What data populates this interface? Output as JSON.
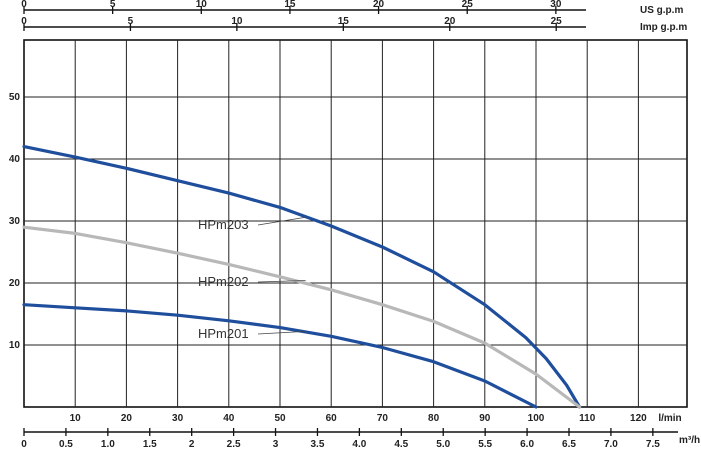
{
  "chart_data": {
    "type": "line",
    "title": "",
    "xlabel": "l/min",
    "ylabel": "",
    "xlim": [
      0,
      132
    ],
    "ylim": [
      0,
      60
    ],
    "grid": true,
    "x_ticks": [
      10,
      20,
      30,
      40,
      50,
      60,
      70,
      80,
      90,
      100,
      110,
      120
    ],
    "y_ticks": [
      10,
      20,
      30,
      40,
      50
    ],
    "secondary_axes": [
      {
        "position": "bottom",
        "unit": "m³/h",
        "ticks": [
          0,
          0.5,
          1.0,
          1.5,
          2,
          2.5,
          3,
          3.5,
          4.0,
          4.5,
          5.0,
          5.5,
          6.0,
          6.5,
          7.0,
          7.5
        ],
        "labels": [
          "0",
          "0.5",
          "1.0",
          "1.5",
          "2",
          "2.5",
          "3",
          "3.5",
          "4.0",
          "4.5",
          "5.0",
          "5.5",
          "6.0",
          "6.5",
          "7.0",
          "7.5"
        ]
      },
      {
        "position": "top",
        "unit": "Imp g.p.m",
        "ticks": [
          0,
          5,
          10,
          15,
          20,
          25
        ],
        "labels": [
          "0",
          "5",
          "10",
          "15",
          "20",
          "25"
        ]
      },
      {
        "position": "top",
        "unit": "US g.p.m",
        "ticks": [
          0,
          5,
          10,
          15,
          20,
          25,
          30
        ],
        "labels": [
          "0",
          "5",
          "10",
          "15",
          "20",
          "25",
          "30"
        ]
      }
    ],
    "series": [
      {
        "name": "HPm203",
        "color": "#1f4e9c",
        "x": [
          0,
          10,
          20,
          30,
          40,
          50,
          60,
          70,
          80,
          90,
          98,
          102,
          106,
          108.5
        ],
        "y": [
          42,
          40.3,
          38.5,
          36.5,
          34.5,
          32.2,
          29.2,
          25.8,
          21.8,
          16.5,
          11.2,
          7.8,
          3.5,
          0
        ]
      },
      {
        "name": "HPm202",
        "color": "#b8b8b8",
        "x": [
          0,
          10,
          20,
          30,
          40,
          50,
          60,
          70,
          80,
          90,
          100,
          108.5
        ],
        "y": [
          29,
          28,
          26.5,
          24.8,
          23,
          21,
          18.9,
          16.5,
          13.8,
          10.3,
          5.3,
          0
        ]
      },
      {
        "name": "HPm201",
        "color": "#1f4e9c",
        "x": [
          0,
          10,
          20,
          30,
          40,
          50,
          60,
          70,
          80,
          90,
          100
        ],
        "y": [
          16.5,
          16,
          15.5,
          14.8,
          13.9,
          12.8,
          11.4,
          9.6,
          7.3,
          4.2,
          0
        ]
      }
    ]
  }
}
